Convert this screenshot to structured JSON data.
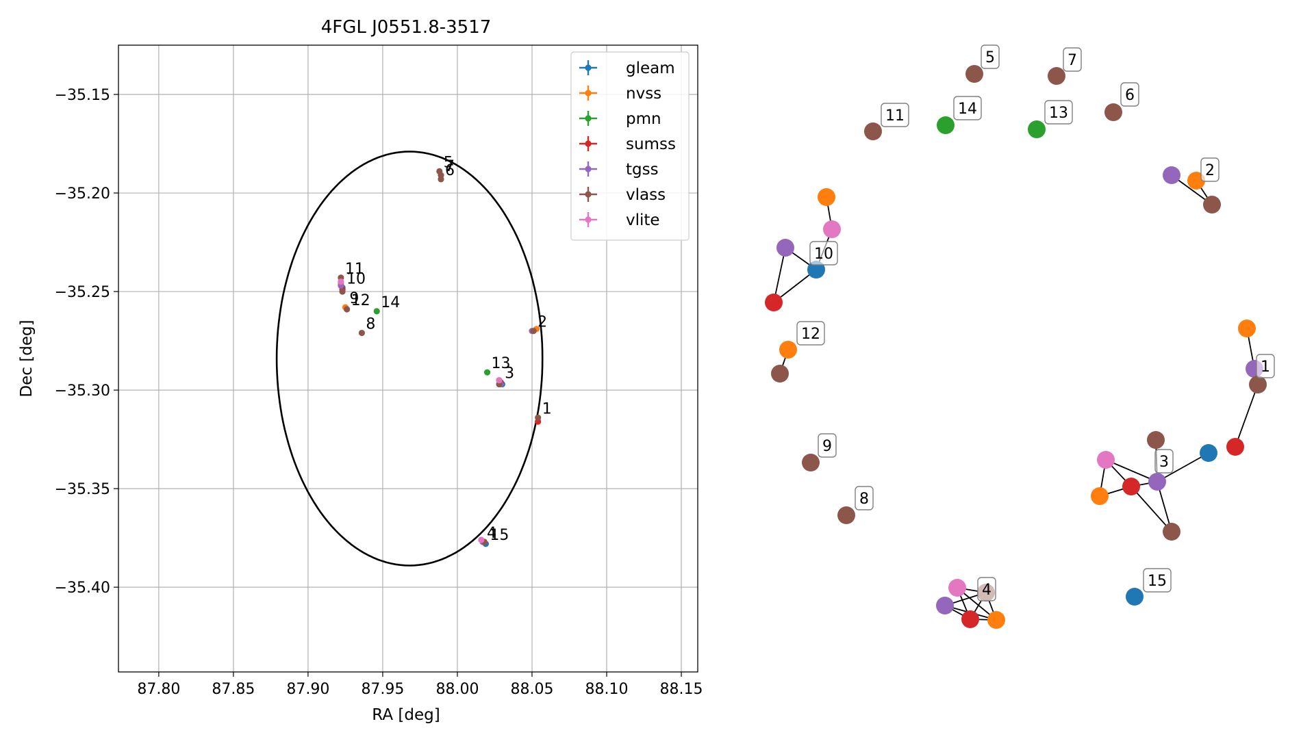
{
  "chart_data": [
    {
      "type": "scatter",
      "title": "4FGL J0551.8-3517",
      "xlabel": "RA [deg]",
      "ylabel": "Dec [deg]",
      "xlim": [
        87.773,
        88.161
      ],
      "ylim": [
        -35.443,
        -35.125
      ],
      "xticks": [
        87.8,
        87.85,
        87.9,
        87.95,
        88.0,
        88.05,
        88.1,
        88.15
      ],
      "xtick_labels": [
        "87.80",
        "87.85",
        "87.90",
        "87.95",
        "88.00",
        "88.05",
        "88.10",
        "88.15"
      ],
      "yticks": [
        -35.15,
        -35.2,
        -35.25,
        -35.3,
        -35.35,
        -35.4
      ],
      "ytick_labels": [
        "−35.15",
        "−35.20",
        "−35.25",
        "−35.30",
        "−35.35",
        "−35.40"
      ],
      "grid": true,
      "legend_position": "top-right",
      "ellipse": {
        "center": [
          87.968,
          -35.284
        ],
        "ra_semi_axis": 0.089,
        "dec_semi_axis": 0.105,
        "rotation_deg": 0
      },
      "series": [
        {
          "name": "gleam",
          "color": "#1f77b4",
          "points": [
            {
              "x": 87.923,
              "y": -35.248
            },
            {
              "x": 88.03,
              "y": -35.297
            },
            {
              "x": 88.019,
              "y": -35.378
            }
          ]
        },
        {
          "name": "nvss",
          "color": "#ff7f0e",
          "points": [
            {
              "x": 88.053,
              "y": -35.269
            },
            {
              "x": 88.028,
              "y": -35.295
            },
            {
              "x": 88.018,
              "y": -35.377
            },
            {
              "x": 87.925,
              "y": -35.258
            },
            {
              "x": 87.922,
              "y": -35.246
            }
          ]
        },
        {
          "name": "pmn",
          "color": "#2ca02c",
          "points": [
            {
              "x": 88.02,
              "y": -35.291
            },
            {
              "x": 87.946,
              "y": -35.26
            }
          ]
        },
        {
          "name": "sumss",
          "color": "#d62728",
          "points": [
            {
              "x": 88.054,
              "y": -35.316
            },
            {
              "x": 88.029,
              "y": -35.296
            },
            {
              "x": 88.017,
              "y": -35.377
            },
            {
              "x": 87.923,
              "y": -35.249
            }
          ]
        },
        {
          "name": "tgss",
          "color": "#9467bd",
          "points": [
            {
              "x": 88.05,
              "y": -35.27
            },
            {
              "x": 88.029,
              "y": -35.297
            },
            {
              "x": 88.017,
              "y": -35.377
            },
            {
              "x": 87.922,
              "y": -35.247
            }
          ]
        },
        {
          "name": "vlass",
          "color": "#8c564b",
          "points": [
            {
              "x": 88.054,
              "y": -35.314
            },
            {
              "x": 88.051,
              "y": -35.27
            },
            {
              "x": 88.028,
              "y": -35.297
            },
            {
              "x": 88.018,
              "y": -35.377
            },
            {
              "x": 87.988,
              "y": -35.189
            },
            {
              "x": 87.989,
              "y": -35.191
            },
            {
              "x": 87.989,
              "y": -35.193
            },
            {
              "x": 87.936,
              "y": -35.271
            },
            {
              "x": 87.926,
              "y": -35.259
            },
            {
              "x": 87.922,
              "y": -35.243
            },
            {
              "x": 87.923,
              "y": -35.25
            }
          ]
        },
        {
          "name": "vlite",
          "color": "#e377c2",
          "points": [
            {
              "x": 88.028,
              "y": -35.295
            },
            {
              "x": 88.016,
              "y": -35.376
            },
            {
              "x": 87.922,
              "y": -35.245
            }
          ]
        }
      ],
      "annotations": [
        {
          "text": "5",
          "x": 87.988,
          "y": -35.189
        },
        {
          "text": "7",
          "x": 87.989,
          "y": -35.191
        },
        {
          "text": "6",
          "x": 87.989,
          "y": -35.193
        },
        {
          "text": "11",
          "x": 87.922,
          "y": -35.243
        },
        {
          "text": "10",
          "x": 87.923,
          "y": -35.248
        },
        {
          "text": "9",
          "x": 87.925,
          "y": -35.258
        },
        {
          "text": "12",
          "x": 87.926,
          "y": -35.259
        },
        {
          "text": "14",
          "x": 87.946,
          "y": -35.26
        },
        {
          "text": "8",
          "x": 87.936,
          "y": -35.271
        },
        {
          "text": "2",
          "x": 88.051,
          "y": -35.27
        },
        {
          "text": "13",
          "x": 88.02,
          "y": -35.291
        },
        {
          "text": "3",
          "x": 88.029,
          "y": -35.296
        },
        {
          "text": "1",
          "x": 88.054,
          "y": -35.314
        },
        {
          "text": "4",
          "x": 88.017,
          "y": -35.377
        },
        {
          "text": "15",
          "x": 88.019,
          "y": -35.378
        }
      ]
    },
    {
      "type": "network",
      "groups": [
        {
          "label": "1",
          "nodes": [
            "nvss",
            "tgss",
            "vlass",
            "sumss"
          ],
          "edges": [
            [
              0,
              1
            ],
            [
              1,
              2
            ],
            [
              2,
              3
            ]
          ]
        },
        {
          "label": "2",
          "nodes": [
            "tgss",
            "nvss",
            "vlass"
          ],
          "edges": [
            [
              0,
              2
            ],
            [
              1,
              2
            ]
          ]
        },
        {
          "label": "3",
          "nodes": [
            "vlass",
            "vlite",
            "sumss",
            "tgss",
            "nvss",
            "vlass",
            "gleam"
          ],
          "edges": [
            [
              1,
              2
            ],
            [
              1,
              3
            ],
            [
              2,
              3
            ],
            [
              0,
              3
            ],
            [
              2,
              4
            ],
            [
              1,
              4
            ],
            [
              3,
              6
            ],
            [
              3,
              5
            ],
            [
              2,
              5
            ]
          ]
        },
        {
          "label": "4",
          "nodes": [
            "vlite",
            "tgss",
            "sumss",
            "nvss",
            "vlass"
          ],
          "edges": [
            [
              0,
              2
            ],
            [
              1,
              2
            ],
            [
              2,
              3
            ],
            [
              1,
              3
            ],
            [
              0,
              3
            ],
            [
              1,
              4
            ],
            [
              0,
              4
            ],
            [
              3,
              4
            ],
            [
              2,
              4
            ]
          ]
        },
        {
          "label": "5",
          "nodes": [
            "vlass"
          ],
          "edges": []
        },
        {
          "label": "6",
          "nodes": [
            "vlass"
          ],
          "edges": []
        },
        {
          "label": "7",
          "nodes": [
            "vlass"
          ],
          "edges": []
        },
        {
          "label": "8",
          "nodes": [
            "vlass"
          ],
          "edges": []
        },
        {
          "label": "9",
          "nodes": [
            "vlass"
          ],
          "edges": []
        },
        {
          "label": "10",
          "nodes": [
            "nvss",
            "vlite",
            "tgss",
            "gleam",
            "sumss"
          ],
          "edges": [
            [
              0,
              1
            ],
            [
              1,
              3
            ],
            [
              2,
              3
            ],
            [
              2,
              4
            ],
            [
              3,
              4
            ]
          ]
        },
        {
          "label": "11",
          "nodes": [
            "vlass"
          ],
          "edges": []
        },
        {
          "label": "12",
          "nodes": [
            "nvss",
            "vlass"
          ],
          "edges": [
            [
              0,
              1
            ]
          ]
        },
        {
          "label": "13",
          "nodes": [
            "pmn"
          ],
          "edges": []
        },
        {
          "label": "14",
          "nodes": [
            "pmn"
          ],
          "edges": []
        },
        {
          "label": "15",
          "nodes": [
            "gleam"
          ],
          "edges": []
        }
      ]
    }
  ]
}
